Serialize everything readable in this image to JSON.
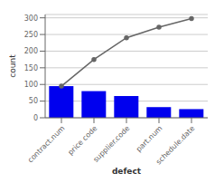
{
  "chart_data": {
    "type": "bar",
    "xlabel": "defect",
    "ylabel": "count",
    "categories": [
      "contract.num",
      "price code",
      "supplier.code",
      "part.num",
      "schedule.date"
    ],
    "series": [
      {
        "type": "bar",
        "color": "#0000ee",
        "values": [
          95,
          80,
          65,
          32,
          26
        ]
      },
      {
        "type": "line",
        "color": "#666666",
        "marker": "circle",
        "values": [
          95,
          175,
          240,
          272,
          298
        ]
      }
    ],
    "ylim": [
      0,
      310
    ],
    "yticks": [
      0,
      50,
      100,
      150,
      200,
      250,
      300
    ],
    "grid": true
  }
}
